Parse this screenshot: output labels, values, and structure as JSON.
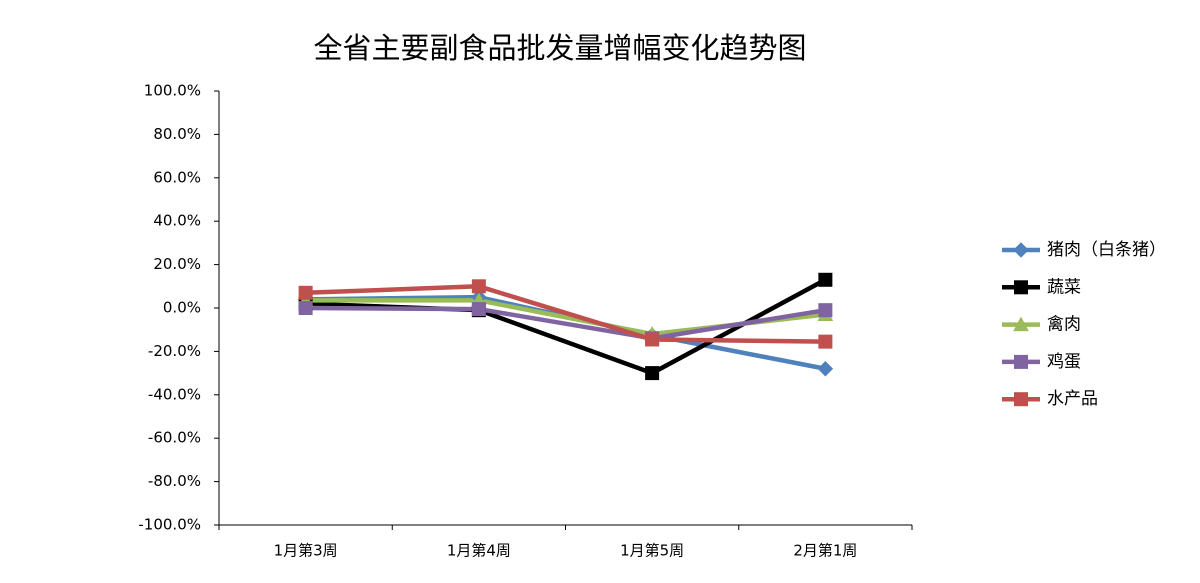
{
  "chart_data": {
    "type": "line",
    "title": "全省主要副食品批发量增幅变化趋势图",
    "categories": [
      "1月第3周",
      "1月第4周",
      "1月第5周",
      "2月第1周"
    ],
    "ylim": [
      -100,
      100
    ],
    "yticks": [
      {
        "value": -100,
        "label": "-100.0%"
      },
      {
        "value": -80,
        "label": "-80.0%"
      },
      {
        "value": -60,
        "label": "-60.0%"
      },
      {
        "value": -40,
        "label": "-40.0%"
      },
      {
        "value": -20,
        "label": "-20.0%"
      },
      {
        "value": 0,
        "label": "0.0%"
      },
      {
        "value": 20,
        "label": "20.0%"
      },
      {
        "value": 40,
        "label": "40.0%"
      },
      {
        "value": 60,
        "label": "60.0%"
      },
      {
        "value": 80,
        "label": "80.0%"
      },
      {
        "value": 100,
        "label": "100.0%"
      }
    ],
    "grid": false,
    "legend": "right",
    "series": [
      {
        "name": "猪肉（白条猪）",
        "color": "#4f81bd",
        "marker": "diamond",
        "values": [
          4,
          5,
          -12.5,
          -28
        ]
      },
      {
        "name": "蔬菜",
        "color": "#000000",
        "marker": "square",
        "values": [
          2,
          -1,
          -30,
          13
        ]
      },
      {
        "name": "禽肉",
        "color": "#9bbb59",
        "marker": "triangle",
        "values": [
          3.5,
          3.5,
          -12,
          -3
        ]
      },
      {
        "name": "鸡蛋",
        "color": "#8064a2",
        "marker": "square",
        "values": [
          0,
          -0.5,
          -14,
          -1
        ]
      },
      {
        "name": "水产品",
        "color": "#c0504d",
        "marker": "square",
        "values": [
          7,
          10,
          -14.5,
          -15.5
        ]
      }
    ]
  }
}
